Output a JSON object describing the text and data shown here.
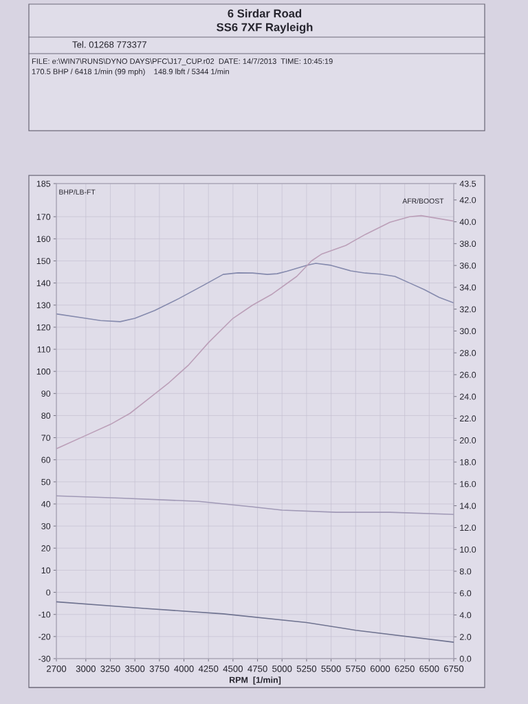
{
  "chart_data": {
    "type": "line",
    "xlabel": "RPM  [1/min]",
    "ylabel": "BHP/LB-FT",
    "y2label": "AFR/BOOST",
    "xlim": [
      2700,
      6750
    ],
    "xticks": [
      2700,
      3000,
      3250,
      3500,
      3750,
      4000,
      4250,
      4500,
      4750,
      5000,
      5250,
      5500,
      5750,
      6000,
      6250,
      6500,
      6750
    ],
    "ylim": [
      -30,
      185
    ],
    "yticks": [
      -30,
      -20,
      -10,
      0,
      10,
      20,
      30,
      40,
      50,
      60,
      70,
      80,
      90,
      100,
      110,
      120,
      130,
      140,
      150,
      160,
      170,
      185
    ],
    "y2lim": [
      0,
      43.5
    ],
    "y2ticks": [
      {
        "value": 0,
        "label": "0.0"
      },
      {
        "value": 2,
        "label": "2.0"
      },
      {
        "value": 4,
        "label": "4.0"
      },
      {
        "value": 6,
        "label": "6.0"
      },
      {
        "value": 8,
        "label": "8.0"
      },
      {
        "value": 10,
        "label": "10.0"
      },
      {
        "value": 12,
        "label": "12.0"
      },
      {
        "value": 14,
        "label": "14.0"
      },
      {
        "value": 16,
        "label": "16.0"
      },
      {
        "value": 18,
        "label": "18.0"
      },
      {
        "value": 20,
        "label": "20.0"
      },
      {
        "value": 22,
        "label": "22.0"
      },
      {
        "value": 24,
        "label": "24.0"
      },
      {
        "value": 26,
        "label": "26.0"
      },
      {
        "value": 28,
        "label": "28.0"
      },
      {
        "value": 30,
        "label": "30.0"
      },
      {
        "value": 32,
        "label": "32.0"
      },
      {
        "value": 34,
        "label": "34.0"
      },
      {
        "value": 36,
        "label": "36.0"
      },
      {
        "value": 38,
        "label": "38.0"
      },
      {
        "value": 40,
        "label": "40.0"
      },
      {
        "value": 42,
        "label": "42.0"
      },
      {
        "value": 43.5,
        "label": "43.5"
      }
    ],
    "grid": true,
    "series": [
      {
        "color": "#858aad",
        "x": [
          2700,
          3000,
          3150,
          3350,
          3500,
          3700,
          3950,
          4200,
          4400,
          4550,
          4700,
          4850,
          4950,
          5050,
          5250,
          5344,
          5500,
          5700,
          5850,
          6000,
          6150,
          6300,
          6450,
          6600,
          6750
        ],
        "values": [
          126,
          124,
          123,
          122.5,
          124,
          127.5,
          133,
          139,
          143.9,
          144.6,
          144.5,
          143.9,
          144.2,
          145.3,
          148,
          148.9,
          148,
          145.5,
          144.5,
          144,
          143,
          140,
          137,
          133.5,
          131
        ]
      },
      {
        "color": "#bb9fb8",
        "x": [
          2700,
          3000,
          3250,
          3450,
          3650,
          3850,
          4050,
          4250,
          4500,
          4700,
          4900,
          5150,
          5300,
          5400,
          5650,
          5850,
          6100,
          6300,
          6418,
          6750
        ],
        "values": [
          65,
          71,
          76,
          81,
          88,
          95,
          103,
          113,
          124,
          130,
          135,
          143,
          150,
          153,
          157,
          162,
          167.5,
          170,
          170.5,
          168
        ]
      },
      {
        "color": "#a099b6",
        "axis": "y2",
        "x": [
          2700,
          3350,
          4150,
          4700,
          5000,
          5550,
          6100,
          6750
        ],
        "values": [
          14.9,
          14.7,
          14.4,
          13.9,
          13.6,
          13.4,
          13.4,
          13.2
        ]
      },
      {
        "color": "#6f7390",
        "axis": "y2",
        "x": [
          2700,
          3600,
          4400,
          5250,
          5750,
          6750
        ],
        "values": [
          5.2,
          4.6,
          4.1,
          3.3,
          2.6,
          1.5
        ]
      }
    ],
    "annotations": [
      "6 Sirdar Road",
      "SS6 7XF Rayleigh",
      "Tel. 01268 773377",
      "FILE: e:\\WIN7\\RUNS\\DYNO DAYS\\PFC\\J17_CUP.r02  DATE: 14/7/2013  TIME: 10:45:19",
      "170.5 BHP / 6418 1/min (99 mph)    148.9 lbft / 5344 1/min"
    ]
  }
}
